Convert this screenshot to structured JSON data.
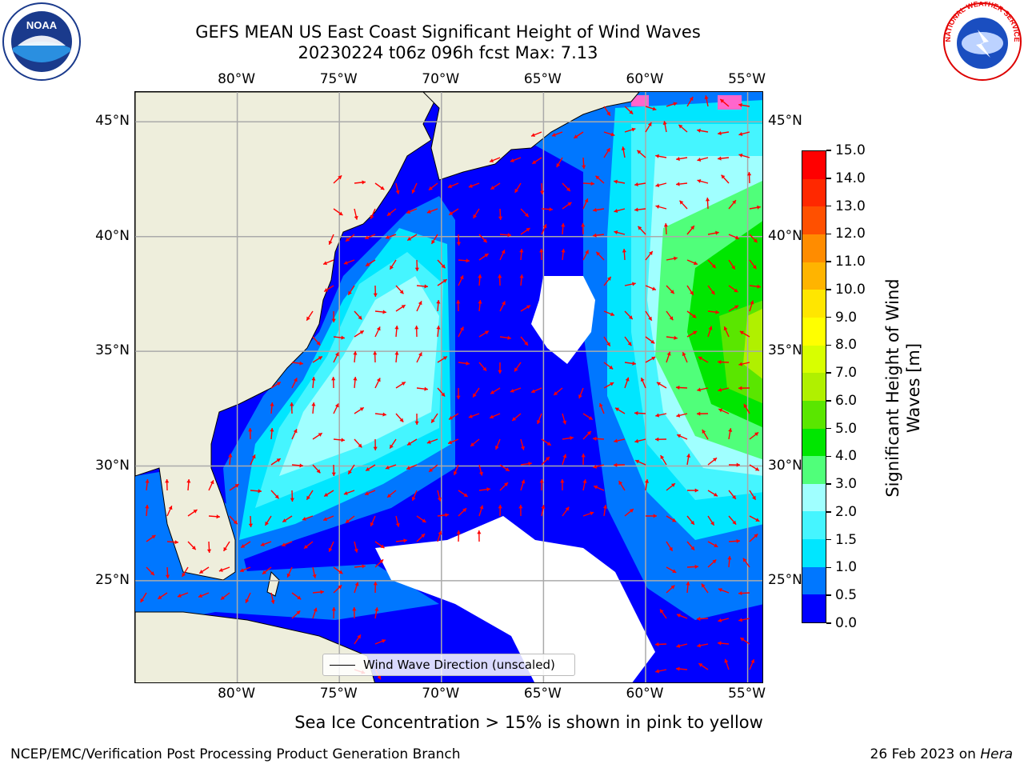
{
  "title": {
    "line1": "GEFS MEAN US East Coast Significant Height of Wind Waves",
    "line2": "20230224 t06z 096h fcst   Max: 7.13"
  },
  "map": {
    "lon_range": [
      -85,
      -54.2
    ],
    "lat_range": [
      20.5,
      46.3
    ],
    "grid": true,
    "lon_labels_top": [
      "80°W",
      "75°W",
      "70°W",
      "65°W",
      "60°W",
      "55°W"
    ],
    "lon_labels_bottom": [
      "80°W",
      "75°W",
      "70°W",
      "65°W",
      "60°W",
      "55°W"
    ],
    "lat_labels_left": [
      "45°N",
      "40°N",
      "35°N",
      "30°N",
      "25°N"
    ],
    "lat_labels_right": [
      "45°N",
      "40°N",
      "35°N",
      "30°N",
      "25°N"
    ],
    "land_color": "#eeeedc",
    "arrow_color": "#ff0000"
  },
  "legend": {
    "label": "Wind Wave Direction (unscaled)"
  },
  "colorbar": {
    "label": "Significant Height of Wind Waves [m]",
    "ticks": [
      "0.0",
      "0.5",
      "1.0",
      "1.5",
      "2.0",
      "3.0",
      "4.0",
      "5.0",
      "6.0",
      "7.0",
      "8.0",
      "9.0",
      "10.0",
      "11.0",
      "12.0",
      "13.0",
      "14.0",
      "15.0"
    ],
    "colors": [
      "#0000ff",
      "#0077ff",
      "#00e6ff",
      "#45f5ff",
      "#a0ffff",
      "#50ff7a",
      "#00e600",
      "#5ae600",
      "#b0f000",
      "#d8ff00",
      "#ffff00",
      "#ffe600",
      "#ffb400",
      "#ff8c00",
      "#ff5000",
      "#ff2800",
      "#ff0000"
    ]
  },
  "footnote": "Sea Ice Concentration > 15% is shown in pink to yellow",
  "producer": "NCEP/EMC/Verification Post Processing Product Generation Branch",
  "date": {
    "text": "26 Feb 2023 on ",
    "host": "Hera"
  },
  "logos": {
    "noaa": "NOAA",
    "nws": "NATIONAL WEATHER SERVICE"
  }
}
